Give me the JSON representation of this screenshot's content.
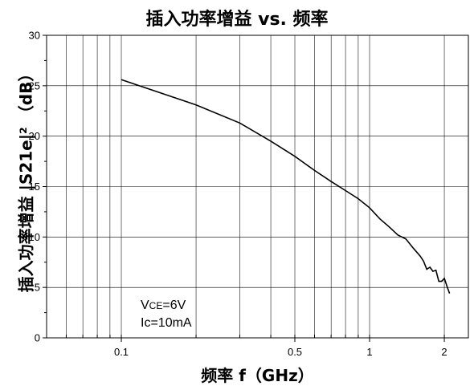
{
  "chart_data": {
    "type": "line",
    "title": "插入功率增益 vs. 频率",
    "xlabel": "频率 f（GHz）",
    "ylabel": "插入功率增益 |S21e|² （dB）",
    "x_scale": "log",
    "xlim": [
      0.05,
      2.5
    ],
    "ylim": [
      0,
      30
    ],
    "x_tick_labels": [
      {
        "value": 0.1,
        "label": "0.1"
      },
      {
        "value": 0.5,
        "label": "0.5"
      },
      {
        "value": 1,
        "label": "1"
      },
      {
        "value": 2,
        "label": "2"
      }
    ],
    "y_ticks": [
      0,
      5,
      10,
      15,
      20,
      25,
      30
    ],
    "grid": true,
    "annotations": [
      {
        "main": "V",
        "sub": "CE",
        "rest": "=6V"
      },
      {
        "main": "Ic=10mA",
        "sub": "",
        "rest": ""
      }
    ],
    "series": [
      {
        "x": [
          0.1,
          0.2,
          0.3,
          0.4,
          0.5,
          0.6,
          0.7,
          0.8,
          0.9,
          1.0,
          1.1,
          1.2,
          1.3,
          1.4,
          1.5,
          1.6,
          1.65,
          1.7,
          1.75,
          1.8,
          1.85,
          1.9,
          1.95,
          2.0,
          2.05,
          2.1
        ],
        "y": [
          25.6,
          23.1,
          21.3,
          19.5,
          18.0,
          16.6,
          15.5,
          14.6,
          13.8,
          12.9,
          11.8,
          11.0,
          10.2,
          9.8,
          8.9,
          8.1,
          7.6,
          6.8,
          7.0,
          6.6,
          6.7,
          5.6,
          5.6,
          5.9,
          5.1,
          4.4
        ]
      }
    ]
  }
}
